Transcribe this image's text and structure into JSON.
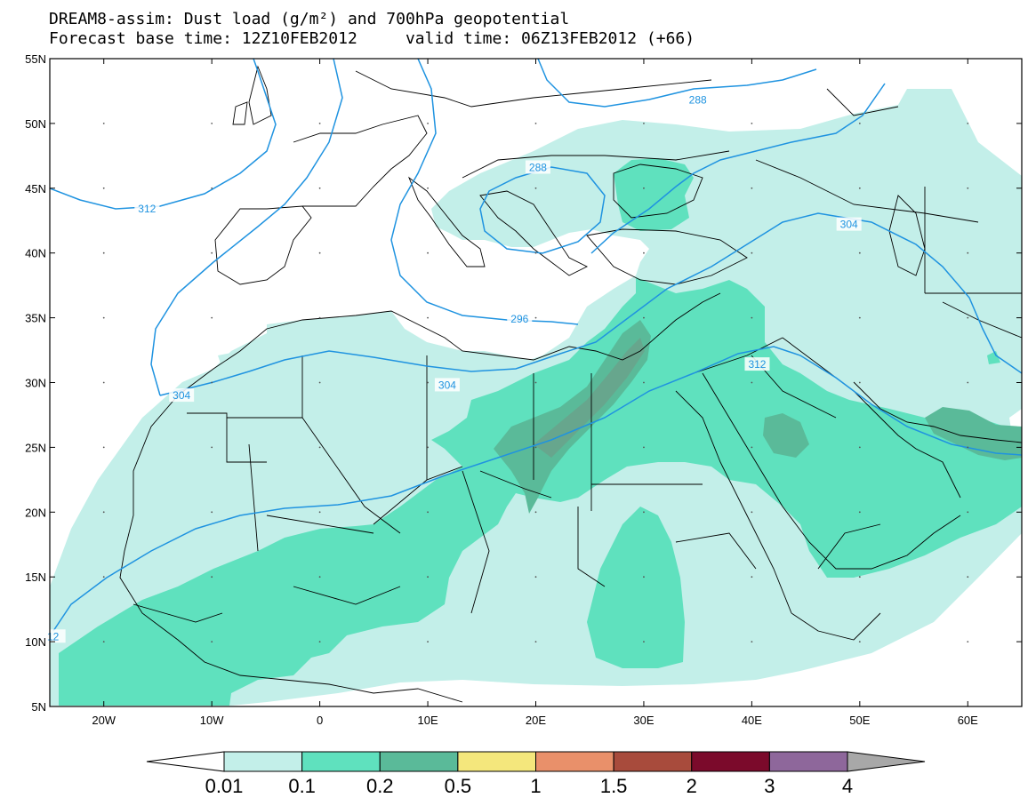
{
  "title_line1": "DREAM8-assim: Dust load (g/m²) and 700hPa geopotential",
  "title_line2": "Forecast base time: 12Z10FEB2012     valid time: 06Z13FEB2012 (+66)",
  "map": {
    "lon_range": [
      -25,
      65
    ],
    "lat_range": [
      5,
      55
    ],
    "lon_ticks": [
      {
        "value": -20,
        "label": "20W"
      },
      {
        "value": -10,
        "label": "10W"
      },
      {
        "value": 0,
        "label": "0"
      },
      {
        "value": 10,
        "label": "10E"
      },
      {
        "value": 20,
        "label": "20E"
      },
      {
        "value": 30,
        "label": "30E"
      },
      {
        "value": 40,
        "label": "40E"
      },
      {
        "value": 50,
        "label": "50E"
      },
      {
        "value": 60,
        "label": "60E"
      }
    ],
    "lat_ticks": [
      {
        "value": 55,
        "label": "55N"
      },
      {
        "value": 50,
        "label": "50N"
      },
      {
        "value": 45,
        "label": "45N"
      },
      {
        "value": 40,
        "label": "40N"
      },
      {
        "value": 35,
        "label": "35N"
      },
      {
        "value": 30,
        "label": "30N"
      },
      {
        "value": 25,
        "label": "25N"
      },
      {
        "value": 20,
        "label": "20N"
      },
      {
        "value": 15,
        "label": "15N"
      },
      {
        "value": 10,
        "label": "10N"
      },
      {
        "value": 5,
        "label": "5N"
      }
    ],
    "contour_labels": [
      {
        "text": "312",
        "lon": -16,
        "lat": 43.4
      },
      {
        "text": "288",
        "lon": 35,
        "lat": 51.8
      },
      {
        "text": "288",
        "lon": 20.2,
        "lat": 46.6
      },
      {
        "text": "304",
        "lon": 49,
        "lat": 42.2
      },
      {
        "text": "296",
        "lon": 18.5,
        "lat": 34.9
      },
      {
        "text": "304",
        "lon": 11.8,
        "lat": 29.8
      },
      {
        "text": "304",
        "lon": -12.8,
        "lat": 29.0
      },
      {
        "text": "312",
        "lon": 40.5,
        "lat": 31.4
      },
      {
        "text": "12",
        "lon": -24.7,
        "lat": 10.4
      }
    ],
    "colors": {
      "land": "#ffffff",
      "level1": "#c3efe9",
      "level2": "#5fe1be",
      "level3": "#5aba99",
      "level4": "#6f9a85",
      "contour": "#1f93e0",
      "border": "#000000"
    }
  },
  "colorbar": {
    "labels": [
      "0.01",
      "0.1",
      "0.2",
      "0.5",
      "1",
      "1.5",
      "2",
      "3",
      "4"
    ],
    "colors": [
      "#ffffff",
      "#c3efe9",
      "#5fe1be",
      "#5aba99",
      "#f4e77c",
      "#e9906a",
      "#a84b3c",
      "#7b0a2b",
      "#8e679b",
      "#a8a8a8"
    ]
  }
}
